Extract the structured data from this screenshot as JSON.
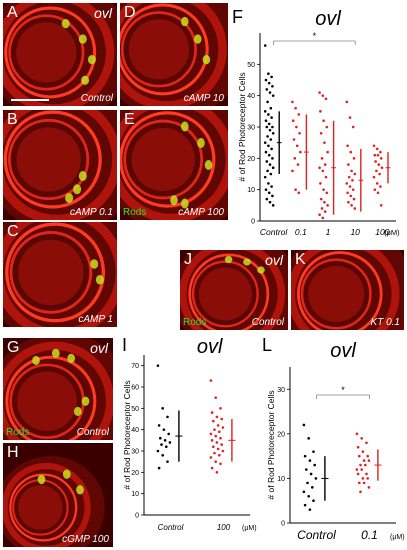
{
  "panels": {
    "A": {
      "label": "A",
      "gene": "ovl",
      "condition": "Control"
    },
    "B": {
      "label": "B",
      "condition": "cAMP 0.1"
    },
    "C": {
      "label": "C",
      "condition": "cAMP 1"
    },
    "D": {
      "label": "D",
      "condition": "cAMP 10"
    },
    "E": {
      "label": "E",
      "stain": "Rods",
      "condition": "cAMP 100"
    },
    "G": {
      "label": "G",
      "gene": "ovl",
      "stain": "Rods",
      "condition": "Control"
    },
    "H": {
      "label": "H",
      "condition": "cGMP 100"
    },
    "J": {
      "label": "J",
      "gene": "ovl",
      "stain": "Rods",
      "condition": "Control"
    },
    "K": {
      "label": "K",
      "condition": "KT 0.1"
    }
  },
  "chart_data": [
    {
      "id": "F",
      "panel_label": "F",
      "type": "scatter",
      "title": "ovl",
      "ylabel": "# of Rod Photoreceptor Cells",
      "ylim": [
        0,
        60
      ],
      "yticks": [
        "0",
        "10",
        "20",
        "30",
        "40",
        "50"
      ],
      "categories": [
        "Control",
        "0.1",
        "1",
        "10",
        "100"
      ],
      "unit": "(μM)",
      "significance": {
        "from": "Control",
        "to": "10",
        "label": "*"
      },
      "colors": {
        "control": "#000000",
        "treated": "#dd2222"
      },
      "series": [
        {
          "category": "Control",
          "mean": 25,
          "sd": 10,
          "values": [
            56,
            47,
            46,
            45,
            44,
            43,
            42,
            41,
            40,
            38,
            36,
            35,
            34,
            33,
            32,
            31,
            30,
            30,
            29,
            28,
            27,
            26,
            25,
            24,
            23,
            22,
            21,
            20,
            19,
            18,
            17,
            16,
            15,
            14,
            12,
            11,
            10,
            9,
            8,
            7,
            6,
            5
          ]
        },
        {
          "category": "0.1",
          "mean": 22,
          "sd": 12,
          "values": [
            38,
            36,
            34,
            32,
            30,
            28,
            26,
            24,
            22,
            20,
            18,
            16,
            10,
            9
          ]
        },
        {
          "category": "1",
          "mean": 17,
          "sd": 15,
          "values": [
            41,
            40,
            39,
            35,
            32,
            30,
            28,
            25,
            22,
            20,
            18,
            17,
            16,
            14,
            12,
            10,
            9,
            7,
            6,
            5,
            4,
            3,
            2,
            1
          ]
        },
        {
          "category": "10",
          "mean": 13,
          "sd": 10,
          "values": [
            38,
            33,
            30,
            24,
            22,
            20,
            18,
            16,
            15,
            14,
            13,
            12,
            11,
            10,
            9,
            8,
            7,
            6,
            5,
            4
          ]
        },
        {
          "category": "100",
          "mean": 17,
          "sd": 5,
          "values": [
            24,
            23,
            22,
            21,
            21,
            20,
            19,
            18,
            17,
            16,
            15,
            14,
            12,
            11,
            10,
            9,
            5
          ]
        }
      ]
    },
    {
      "id": "I",
      "panel_label": "I",
      "type": "scatter",
      "title": "ovl",
      "ylabel": "# of Rod Photoreceptor Cells",
      "ylim": [
        0,
        75
      ],
      "yticks": [
        "0",
        "10",
        "20",
        "30",
        "40",
        "50",
        "60",
        "70"
      ],
      "categories": [
        "Control",
        "100"
      ],
      "unit": "(μM)",
      "colors": {
        "control": "#000000",
        "treated": "#dd2222"
      },
      "series": [
        {
          "category": "Control",
          "mean": 37,
          "sd": 12,
          "values": [
            70,
            50,
            46,
            42,
            40,
            38,
            36,
            35,
            34,
            33,
            32,
            30,
            28,
            25,
            22
          ]
        },
        {
          "category": "100",
          "mean": 35,
          "sd": 10,
          "values": [
            63,
            55,
            50,
            48,
            46,
            45,
            44,
            42,
            41,
            40,
            39,
            38,
            37,
            36,
            35,
            34,
            33,
            32,
            31,
            30,
            29,
            28,
            27,
            25,
            24,
            22,
            20
          ]
        }
      ]
    },
    {
      "id": "L",
      "panel_label": "L",
      "type": "scatter",
      "title": "ovl",
      "ylabel": "# of Rod Photoreceptor Cells",
      "ylim": [
        0,
        35
      ],
      "yticks": [
        "0",
        "10",
        "20",
        "30"
      ],
      "categories": [
        "Control",
        "0.1"
      ],
      "unit": "(μM)",
      "significance": {
        "from": "Control",
        "to": "0.1",
        "label": "*"
      },
      "colors": {
        "control": "#000000",
        "treated": "#dd2222"
      },
      "series": [
        {
          "category": "Control",
          "mean": 10,
          "sd": 5,
          "values": [
            22,
            19,
            16,
            15,
            14,
            13,
            12,
            11,
            10,
            9,
            8,
            7,
            6,
            5,
            4,
            3
          ]
        },
        {
          "category": "0.1",
          "mean": 13,
          "sd": 3.5,
          "values": [
            20,
            19,
            18,
            17,
            16,
            15,
            15,
            14,
            14,
            13,
            13,
            12,
            12,
            11,
            11,
            10,
            10,
            9,
            9,
            8,
            7
          ]
        }
      ]
    }
  ]
}
